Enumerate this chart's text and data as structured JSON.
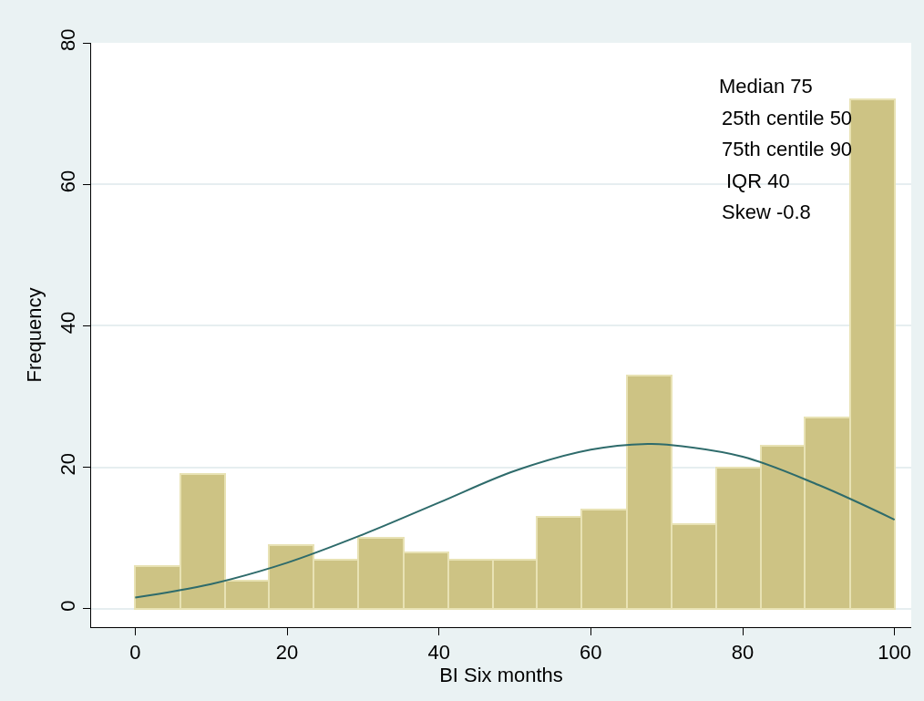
{
  "chart_data": {
    "type": "histogram",
    "xlabel": "BI Six months",
    "ylabel": "Frequency",
    "bins": [
      0,
      5.9,
      11.8,
      17.6,
      23.5,
      29.4,
      35.3,
      41.2,
      47.1,
      52.9,
      58.8,
      64.7,
      70.6,
      76.5,
      82.4,
      88.2,
      94.1,
      100
    ],
    "values": [
      6,
      19,
      4,
      9,
      7,
      10,
      8,
      7,
      7,
      13,
      14,
      33,
      12,
      20,
      23,
      27,
      72
    ],
    "color": "#cdc384",
    "series": [
      {
        "type": "line",
        "color": "#2e6b6b",
        "x": [
          0,
          10,
          20,
          30,
          40,
          50,
          60,
          67.5,
          70,
          80,
          90,
          100
        ],
        "values": [
          1.6,
          3.5,
          6.5,
          10.5,
          15,
          19.5,
          22.5,
          23.3,
          23.2,
          21.5,
          17.5,
          12.6
        ]
      }
    ],
    "xlim": [
      -5.8,
      102.2
    ],
    "xticks": [
      0,
      20,
      40,
      60,
      80,
      100
    ],
    "ylim": [
      -2.6,
      80
    ],
    "yticks": [
      0,
      20,
      40,
      60,
      80
    ],
    "grid": "y",
    "marker": "none",
    "line_style": "solid",
    "annotations": [
      "Median 75",
      "25th centile 50",
      "75th centile 90",
      "IQR 40",
      "Skew -0.8"
    ]
  }
}
